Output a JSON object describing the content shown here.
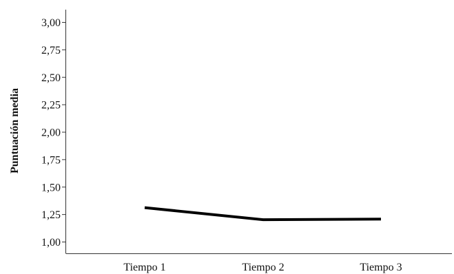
{
  "chart_data": {
    "type": "line",
    "title": "",
    "xlabel": "",
    "ylabel": "Puntuación media",
    "categories": [
      "Tiempo 1",
      "Tiempo 2",
      "Tiempo 3"
    ],
    "series": [
      {
        "values": [
          1.31,
          1.2,
          1.205
        ]
      }
    ],
    "y_ticks": [
      "1,00",
      "1,25",
      "1,50",
      "1,75",
      "2,00",
      "2,25",
      "2,50",
      "2,75",
      "3,00"
    ],
    "ylim": [
      1.0,
      3.0
    ],
    "grid": false,
    "legend": "none",
    "line_color": "#000000"
  }
}
